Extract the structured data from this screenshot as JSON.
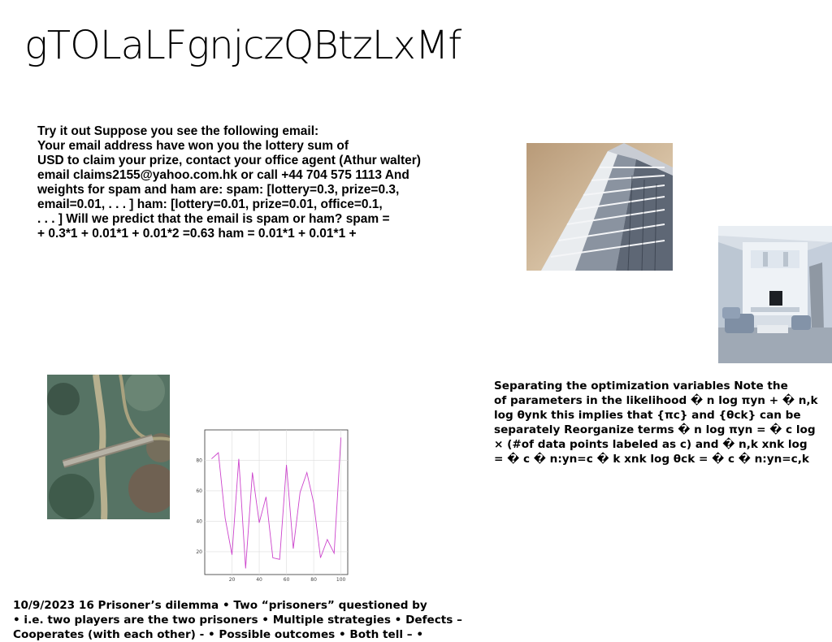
{
  "page": {
    "title": "gTOLaLFgnjczQBtzLxMf"
  },
  "text_blocks": {
    "spam_example": [
      "Try it out Suppose you see the following email:",
      "Your email address have won you the lottery sum of",
      "USD to claim your prize, contact your office agent (Athur walter)",
      "email claims2155@yahoo.com.hk or call +44 704 575 1113 And",
      "weights for spam and ham are: spam: [lottery=0.3, prize=0.3,",
      "email=0.01, . . . ] ham: [lottery=0.01, prize=0.01, office=0.1,",
      ". . . ] Will we predict that the email is spam or ham? spam =",
      "+ 0.3*1 + 0.01*1 + 0.01*2 =0.63 ham = 0.01*1 + 0.01*1 +"
    ],
    "optimization": [
      "Separating the optimization variables Note the",
      "of parameters in the likelihood � n log πyn + � n,k",
      "log θynk this implies that {πc} and {θck} can be",
      "separately Reorganize terms � n log πyn = � c log",
      "× (#of data points labeled as c) and � n,k xnk log",
      "= � c � n:yn=c � k xnk log θck = � c � n:yn=c,k"
    ],
    "prisoners": [
      "10/9/2023 16 Prisoner’s dilemma • Two “prisoners” questioned by",
      "• i.e. two players are the two prisoners • Multiple strategies • Defects –",
      "Cooperates (with each other) - • Possible outcomes • Both tell – •"
    ]
  },
  "images": {
    "building": "building-photo",
    "room": "interior-photo",
    "bridge": "aerial-bridge-photo"
  },
  "chart_data": {
    "type": "line",
    "x": [
      5,
      10,
      15,
      20,
      25,
      30,
      35,
      40,
      45,
      50,
      55,
      60,
      65,
      70,
      75,
      80,
      85,
      90,
      95,
      100
    ],
    "values": [
      81,
      85,
      42,
      18,
      81,
      9,
      72,
      39,
      56,
      16,
      15,
      77,
      22,
      59,
      72,
      52,
      16,
      28,
      19,
      95
    ],
    "xlim": [
      0,
      105
    ],
    "ylim": [
      5,
      100
    ],
    "xticks": [
      20,
      40,
      60,
      80,
      100
    ],
    "yticks": [
      20,
      40,
      60,
      80
    ],
    "grid": true,
    "color": "#cc44cc",
    "title": "",
    "xlabel": "",
    "ylabel": ""
  }
}
